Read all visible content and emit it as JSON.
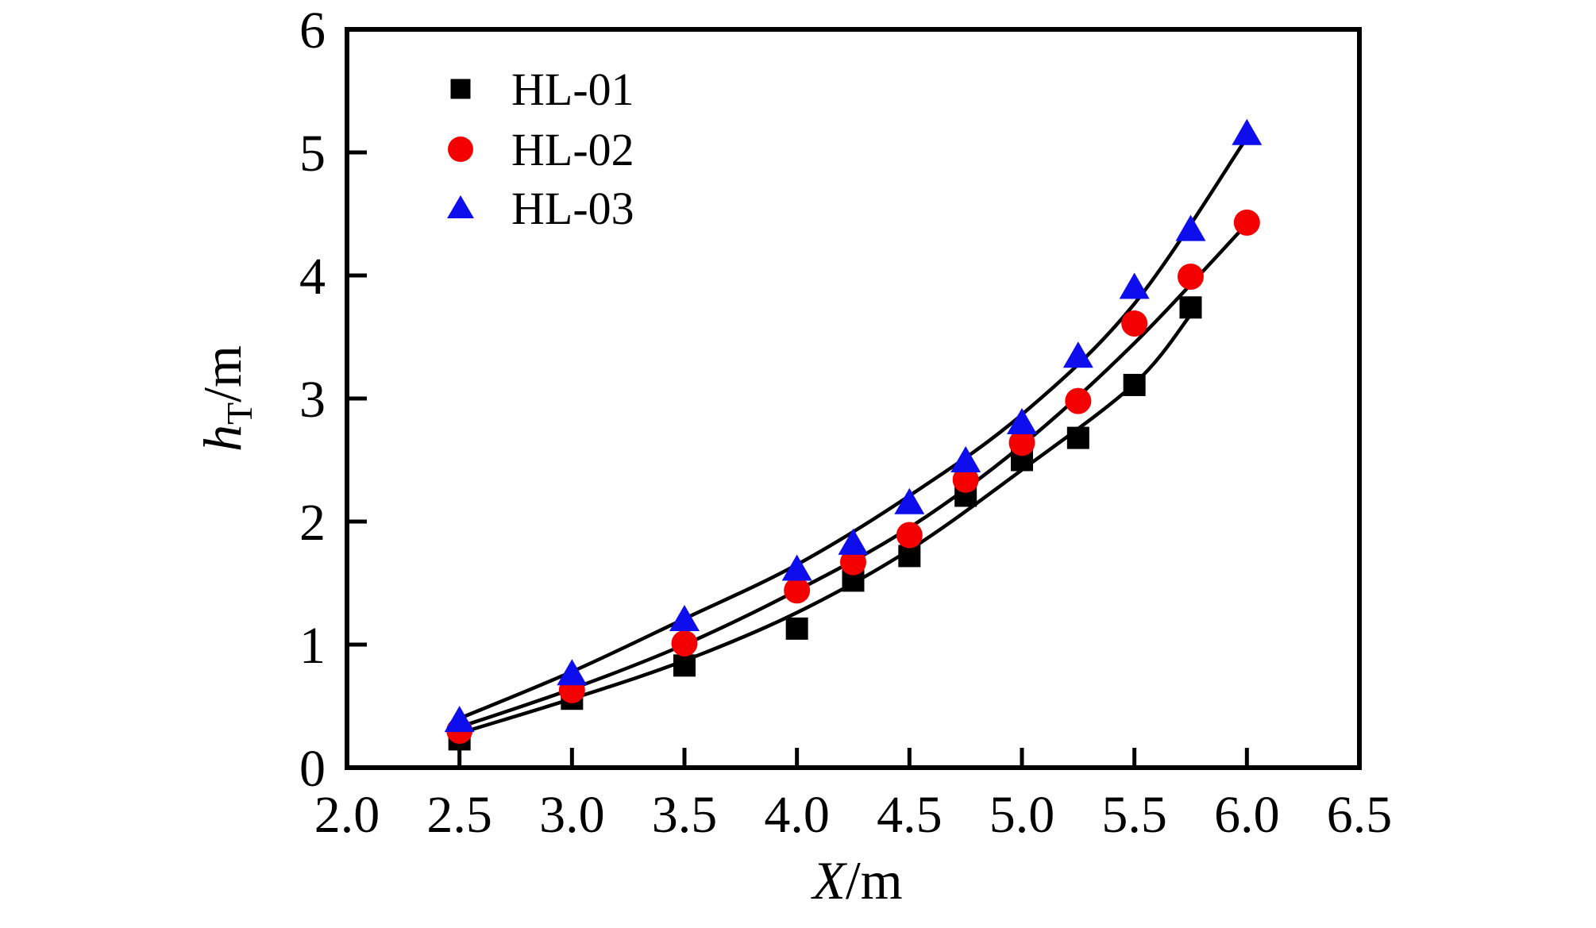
{
  "chart_data": {
    "type": "scatter",
    "title": "",
    "grid": false,
    "legend_position": "top-left-inside",
    "axes": {
      "x_title": {
        "variable": "X",
        "rest": "/m"
      },
      "y_title": {
        "variable": "h",
        "subscript": "T",
        "rest": "/m"
      }
    },
    "xlim": [
      2.0,
      6.5
    ],
    "ylim": [
      0,
      6
    ],
    "x_ticks": [
      {
        "v": 2.0,
        "label": "2.0"
      },
      {
        "v": 2.5,
        "label": "2.5"
      },
      {
        "v": 3.0,
        "label": "3.0"
      },
      {
        "v": 3.5,
        "label": "3.5"
      },
      {
        "v": 4.0,
        "label": "4.0"
      },
      {
        "v": 4.5,
        "label": "4.5"
      },
      {
        "v": 5.0,
        "label": "5.0"
      },
      {
        "v": 5.5,
        "label": "5.5"
      },
      {
        "v": 6.0,
        "label": "6.0"
      },
      {
        "v": 6.5,
        "label": "6.5"
      }
    ],
    "y_ticks": [
      {
        "v": 0,
        "label": "0"
      },
      {
        "v": 1,
        "label": "1"
      },
      {
        "v": 2,
        "label": "2"
      },
      {
        "v": 3,
        "label": "3"
      },
      {
        "v": 4,
        "label": "4"
      },
      {
        "v": 5,
        "label": "5"
      },
      {
        "v": 6,
        "label": "6"
      }
    ],
    "x": [
      2.5,
      3.0,
      3.5,
      4.0,
      4.25,
      4.5,
      4.75,
      5.0,
      5.25,
      5.5,
      5.75,
      6.0
    ],
    "series": [
      {
        "name": "HL-01",
        "marker": "square",
        "color": "#000000",
        "values": [
          0.23,
          0.56,
          0.83,
          1.13,
          1.52,
          1.72,
          2.21,
          2.5,
          2.68,
          3.11,
          3.74,
          null
        ],
        "curve": [
          [
            2.5,
            0.28
          ],
          [
            3.0,
            0.56
          ],
          [
            3.5,
            0.87
          ],
          [
            4.0,
            1.26
          ],
          [
            4.5,
            1.77
          ],
          [
            5.0,
            2.42
          ],
          [
            5.5,
            3.12
          ],
          [
            5.75,
            3.68
          ]
        ]
      },
      {
        "name": "HL-02",
        "marker": "circle",
        "color": "#f40000",
        "values": [
          0.3,
          0.63,
          1.01,
          1.44,
          1.67,
          1.89,
          2.34,
          2.64,
          2.98,
          3.61,
          3.99,
          4.43
        ],
        "curve": [
          [
            2.5,
            0.33
          ],
          [
            3.0,
            0.64
          ],
          [
            3.5,
            1.0
          ],
          [
            4.0,
            1.44
          ],
          [
            4.5,
            1.95
          ],
          [
            5.0,
            2.62
          ],
          [
            5.5,
            3.45
          ],
          [
            6.0,
            4.42
          ]
        ]
      },
      {
        "name": "HL-03",
        "marker": "triangle",
        "color": "#0d0dee",
        "values": [
          0.38,
          0.76,
          1.2,
          1.61,
          1.82,
          2.15,
          2.49,
          2.8,
          3.34,
          3.9,
          4.37,
          5.15
        ],
        "curve": [
          [
            2.5,
            0.4
          ],
          [
            3.0,
            0.78
          ],
          [
            3.5,
            1.21
          ],
          [
            4.0,
            1.65
          ],
          [
            4.5,
            2.21
          ],
          [
            5.0,
            2.87
          ],
          [
            5.5,
            3.77
          ],
          [
            6.0,
            5.12
          ]
        ]
      }
    ]
  }
}
